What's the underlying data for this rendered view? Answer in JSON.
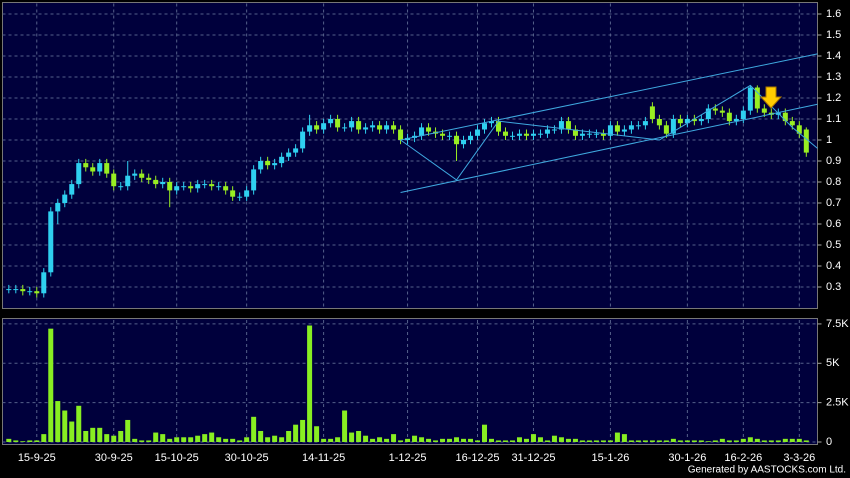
{
  "chart_data": {
    "type": "candlestick",
    "footer": "Generated by AASTOCKS.com Ltd.",
    "up_color": "#2fd0f0",
    "down_color": "#99ee22",
    "volume_color": "#88ee22",
    "xlim": [
      -0.9,
      115.6
    ],
    "xticks": [
      {
        "value": 4,
        "label": "15-9-25"
      },
      {
        "value": 15,
        "label": "30-9-25"
      },
      {
        "value": 24,
        "label": "15-10-25"
      },
      {
        "value": 34,
        "label": "30-10-25"
      },
      {
        "value": 45,
        "label": "14-11-25"
      },
      {
        "value": 57,
        "label": "1-12-25"
      },
      {
        "value": 67,
        "label": "16-12-25"
      },
      {
        "value": 75,
        "label": "31-12-25"
      },
      {
        "value": 86,
        "label": "15-1-26"
      },
      {
        "value": 97,
        "label": "30-1-26"
      },
      {
        "value": 105,
        "label": "16-2-26"
      },
      {
        "value": 113,
        "label": "3-3-26"
      }
    ],
    "ylim": [
      0.2,
      1.65
    ],
    "yticks": [
      0.3,
      0.4,
      0.5,
      0.6,
      0.7,
      0.8,
      0.9,
      1,
      1.1,
      1.2,
      1.3,
      1.4,
      1.5,
      1.6
    ],
    "volume_ylim": [
      0,
      7750
    ],
    "volume_yticks": [
      0,
      {
        "value": 2500,
        "label": "2.5K"
      },
      {
        "value": 5000,
        "label": "5K"
      },
      {
        "value": 7500,
        "label": "7.5K"
      }
    ],
    "grid": true,
    "open": [
      0.29,
      0.29,
      0.29,
      0.28,
      0.28,
      0.27,
      0.37,
      0.66,
      0.7,
      0.74,
      0.79,
      0.89,
      0.87,
      0.85,
      0.89,
      0.84,
      0.78,
      0.78,
      0.83,
      0.84,
      0.82,
      0.81,
      0.79,
      0.8,
      0.76,
      0.78,
      0.78,
      0.77,
      0.79,
      0.79,
      0.78,
      0.78,
      0.76,
      0.73,
      0.73,
      0.76,
      0.86,
      0.9,
      0.88,
      0.89,
      0.92,
      0.94,
      0.96,
      1.04,
      1.07,
      1.05,
      1.08,
      1.1,
      1.06,
      1.06,
      1.09,
      1.05,
      1.06,
      1.07,
      1.05,
      1.07,
      1.05,
      1.0,
      1.01,
      1.02,
      1.06,
      1.04,
      1.03,
      1.02,
      1.02,
      0.98,
      1.0,
      1.02,
      1.05,
      1.08,
      1.09,
      1.04,
      1.02,
      1.02,
      1.03,
      1.02,
      1.03,
      1.03,
      1.05,
      1.05,
      1.09,
      1.05,
      1.02,
      1.03,
      1.03,
      1.03,
      1.02,
      1.07,
      1.04,
      1.05,
      1.07,
      1.07,
      1.16,
      1.1,
      1.07,
      1.03,
      1.1,
      1.08,
      1.1,
      1.09,
      1.1,
      1.15,
      1.14,
      1.13,
      1.09,
      1.1,
      1.14,
      1.25,
      1.15,
      1.13,
      1.12,
      1.13,
      1.09,
      1.07,
      1.05
    ],
    "high": [
      0.31,
      0.31,
      0.31,
      0.3,
      0.3,
      0.39,
      0.68,
      0.72,
      0.76,
      0.81,
      0.91,
      0.91,
      0.89,
      0.91,
      0.91,
      0.86,
      0.8,
      0.9,
      0.86,
      0.86,
      0.84,
      0.83,
      0.82,
      0.82,
      0.8,
      0.8,
      0.8,
      0.81,
      0.81,
      0.81,
      0.8,
      0.8,
      0.78,
      0.75,
      0.78,
      0.88,
      0.92,
      0.92,
      0.91,
      0.94,
      0.96,
      0.98,
      1.06,
      1.12,
      1.09,
      1.1,
      1.12,
      1.12,
      1.08,
      1.11,
      1.11,
      1.08,
      1.09,
      1.09,
      1.09,
      1.09,
      1.07,
      1.03,
      1.04,
      1.08,
      1.08,
      1.06,
      1.05,
      1.04,
      1.04,
      1.02,
      1.04,
      1.07,
      1.1,
      1.11,
      1.11,
      1.06,
      1.04,
      1.05,
      1.05,
      1.05,
      1.05,
      1.07,
      1.07,
      1.11,
      1.11,
      1.07,
      1.05,
      1.05,
      1.05,
      1.05,
      1.09,
      1.09,
      1.07,
      1.09,
      1.09,
      1.11,
      1.18,
      1.12,
      1.09,
      1.12,
      1.12,
      1.12,
      1.12,
      1.12,
      1.17,
      1.17,
      1.16,
      1.15,
      1.12,
      1.16,
      1.26,
      1.26,
      1.17,
      1.15,
      1.15,
      1.15,
      1.11,
      1.09,
      1.06
    ],
    "low": [
      0.27,
      0.27,
      0.26,
      0.26,
      0.25,
      0.25,
      0.35,
      0.6,
      0.68,
      0.72,
      0.77,
      0.85,
      0.83,
      0.83,
      0.82,
      0.76,
      0.76,
      0.76,
      0.81,
      0.8,
      0.79,
      0.77,
      0.77,
      0.68,
      0.74,
      0.76,
      0.75,
      0.75,
      0.77,
      0.76,
      0.76,
      0.74,
      0.71,
      0.71,
      0.71,
      0.74,
      0.84,
      0.86,
      0.86,
      0.87,
      0.9,
      0.92,
      0.94,
      1.02,
      1.03,
      1.03,
      1.06,
      1.04,
      1.04,
      1.04,
      1.03,
      1.03,
      1.04,
      1.03,
      1.03,
      1.03,
      0.98,
      0.98,
      0.99,
      1.0,
      1.02,
      1.01,
      1.0,
      1.0,
      0.9,
      0.96,
      0.98,
      1.0,
      1.03,
      1.06,
      1.02,
      1.0,
      1.0,
      1.0,
      1.0,
      1.0,
      1.01,
      1.01,
      1.03,
      1.03,
      1.03,
      1.0,
      1.0,
      1.01,
      1.01,
      1.0,
      1.0,
      1.02,
      1.02,
      1.03,
      1.05,
      1.05,
      1.08,
      1.05,
      1.01,
      1.01,
      1.06,
      1.06,
      1.07,
      1.07,
      1.08,
      1.12,
      1.11,
      1.07,
      1.07,
      1.08,
      1.12,
      1.13,
      1.11,
      1.1,
      1.1,
      1.07,
      1.05,
      1.01,
      0.92
    ],
    "close": [
      0.29,
      0.29,
      0.28,
      0.28,
      0.27,
      0.37,
      0.66,
      0.7,
      0.74,
      0.79,
      0.89,
      0.87,
      0.85,
      0.89,
      0.84,
      0.78,
      0.78,
      0.83,
      0.84,
      0.82,
      0.81,
      0.79,
      0.8,
      0.76,
      0.78,
      0.78,
      0.77,
      0.79,
      0.79,
      0.78,
      0.78,
      0.76,
      0.73,
      0.73,
      0.76,
      0.86,
      0.9,
      0.88,
      0.89,
      0.92,
      0.94,
      0.96,
      1.04,
      1.07,
      1.05,
      1.08,
      1.1,
      1.06,
      1.06,
      1.09,
      1.05,
      1.06,
      1.07,
      1.05,
      1.07,
      1.05,
      1.0,
      1.01,
      1.02,
      1.06,
      1.04,
      1.03,
      1.02,
      1.02,
      0.98,
      1.0,
      1.02,
      1.05,
      1.08,
      1.09,
      1.04,
      1.02,
      1.02,
      1.03,
      1.02,
      1.03,
      1.03,
      1.05,
      1.05,
      1.09,
      1.05,
      1.02,
      1.03,
      1.03,
      1.03,
      1.02,
      1.07,
      1.04,
      1.05,
      1.07,
      1.07,
      1.09,
      1.1,
      1.07,
      1.03,
      1.1,
      1.08,
      1.1,
      1.09,
      1.1,
      1.15,
      1.14,
      1.13,
      1.09,
      1.1,
      1.14,
      1.25,
      1.15,
      1.13,
      1.12,
      1.13,
      1.09,
      1.07,
      1.03,
      0.94
    ],
    "volume": [
      200,
      100,
      50,
      100,
      100,
      500,
      7200,
      2600,
      2000,
      1300,
      2300,
      700,
      900,
      900,
      500,
      400,
      700,
      1400,
      200,
      100,
      100,
      600,
      500,
      200,
      300,
      300,
      300,
      400,
      500,
      600,
      300,
      200,
      200,
      100,
      300,
      1600,
      700,
      300,
      400,
      300,
      700,
      1100,
      1400,
      7400,
      1000,
      200,
      200,
      300,
      2000,
      600,
      700,
      400,
      200,
      300,
      200,
      500,
      100,
      200,
      400,
      300,
      200,
      100,
      200,
      200,
      300,
      200,
      200,
      100,
      1100,
      200,
      100,
      100,
      100,
      300,
      200,
      500,
      300,
      100,
      400,
      300,
      200,
      200,
      100,
      100,
      100,
      100,
      100,
      600,
      500,
      100,
      100,
      100,
      100,
      100,
      100,
      200,
      100,
      100,
      100,
      100,
      50,
      100,
      200,
      100,
      100,
      200,
      300,
      200,
      100,
      100,
      100,
      200,
      200,
      200,
      100
    ],
    "trendlines": [
      {
        "color": "#3fa9e0",
        "x": [
          56,
          115.6
        ],
        "y": [
          0.75,
          1.17
        ]
      },
      {
        "color": "#3fa9e0",
        "x": [
          56,
          115.6
        ],
        "y": [
          1.0,
          1.41
        ]
      },
      {
        "color": "#3fa9e0",
        "x": [
          56,
          64,
          70,
          93,
          106,
          112,
          115.6
        ],
        "y": [
          1.0,
          0.81,
          1.09,
          1.0,
          1.26,
          1.06,
          0.96
        ]
      }
    ]
  }
}
